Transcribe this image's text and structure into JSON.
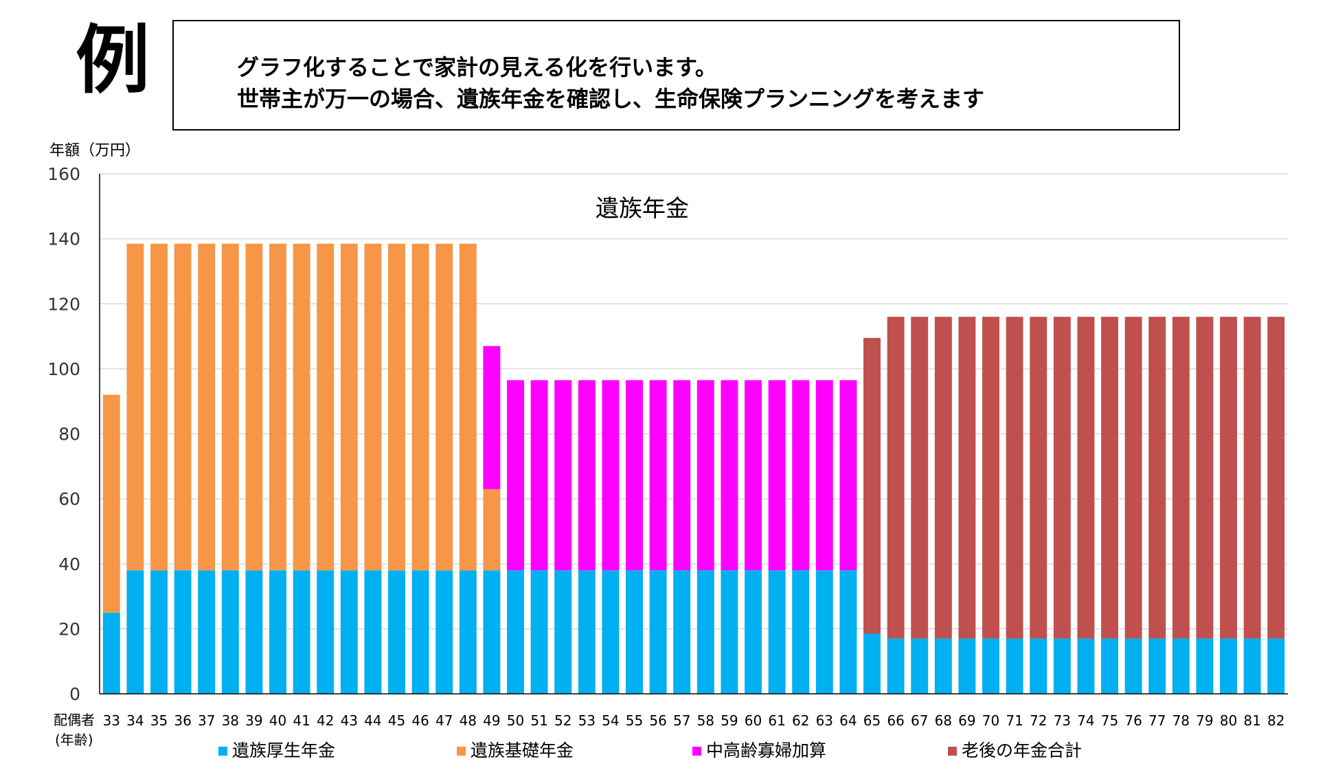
{
  "header": {
    "example_mark": "例",
    "note_lines": [
      "グラフ化することで家計の見える化を行います。",
      "世帯主が万一の場合、遺族年金を確認し、生命保険プランニングを考えます"
    ]
  },
  "chart_data": {
    "type": "bar",
    "stacked": true,
    "title": "遺族年金",
    "ylabel": "年額（万円）",
    "xlabel_lines": [
      "配偶者",
      "(年齢)"
    ],
    "ylim": [
      0,
      160
    ],
    "yticks": [
      0,
      20,
      40,
      60,
      80,
      100,
      120,
      140,
      160
    ],
    "grid": true,
    "legend_position": "bottom",
    "categories": [
      "33",
      "34",
      "35",
      "36",
      "37",
      "38",
      "39",
      "40",
      "41",
      "42",
      "43",
      "44",
      "45",
      "46",
      "47",
      "48",
      "49",
      "50",
      "51",
      "52",
      "53",
      "54",
      "55",
      "56",
      "57",
      "58",
      "59",
      "60",
      "61",
      "62",
      "63",
      "64",
      "65",
      "66",
      "67",
      "68",
      "69",
      "70",
      "71",
      "72",
      "73",
      "74",
      "75",
      "76",
      "77",
      "78",
      "79",
      "80",
      "81",
      "82"
    ],
    "series": [
      {
        "name": "遺族厚生年金",
        "color": "#00b0f0",
        "values": [
          25,
          38,
          38,
          38,
          38,
          38,
          38,
          38,
          38,
          38,
          38,
          38,
          38,
          38,
          38,
          38,
          38,
          38,
          38,
          38,
          38,
          38,
          38,
          38,
          38,
          38,
          38,
          38,
          38,
          38,
          38,
          38,
          18.5,
          17,
          17,
          17,
          17,
          17,
          17,
          17,
          17,
          17,
          17,
          17,
          17,
          17,
          17,
          17,
          17,
          17
        ]
      },
      {
        "name": "遺族基礎年金",
        "color": "#f79646",
        "values": [
          67,
          100.5,
          100.5,
          100.5,
          100.5,
          100.5,
          100.5,
          100.5,
          100.5,
          100.5,
          100.5,
          100.5,
          100.5,
          100.5,
          100.5,
          100.5,
          25,
          0,
          0,
          0,
          0,
          0,
          0,
          0,
          0,
          0,
          0,
          0,
          0,
          0,
          0,
          0,
          0,
          0,
          0,
          0,
          0,
          0,
          0,
          0,
          0,
          0,
          0,
          0,
          0,
          0,
          0,
          0,
          0,
          0
        ]
      },
      {
        "name": "中高齢寡婦加算",
        "color": "#ff00ff",
        "values": [
          0,
          0,
          0,
          0,
          0,
          0,
          0,
          0,
          0,
          0,
          0,
          0,
          0,
          0,
          0,
          0,
          44,
          58.5,
          58.5,
          58.5,
          58.5,
          58.5,
          58.5,
          58.5,
          58.5,
          58.5,
          58.5,
          58.5,
          58.5,
          58.5,
          58.5,
          58.5,
          0,
          0,
          0,
          0,
          0,
          0,
          0,
          0,
          0,
          0,
          0,
          0,
          0,
          0,
          0,
          0,
          0,
          0
        ]
      },
      {
        "name": "老後の年金合計",
        "color": "#c0504d",
        "values": [
          0,
          0,
          0,
          0,
          0,
          0,
          0,
          0,
          0,
          0,
          0,
          0,
          0,
          0,
          0,
          0,
          0,
          0,
          0,
          0,
          0,
          0,
          0,
          0,
          0,
          0,
          0,
          0,
          0,
          0,
          0,
          0,
          91,
          99,
          99,
          99,
          99,
          99,
          99,
          99,
          99,
          99,
          99,
          99,
          99,
          99,
          99,
          99,
          99,
          99
        ]
      }
    ]
  }
}
